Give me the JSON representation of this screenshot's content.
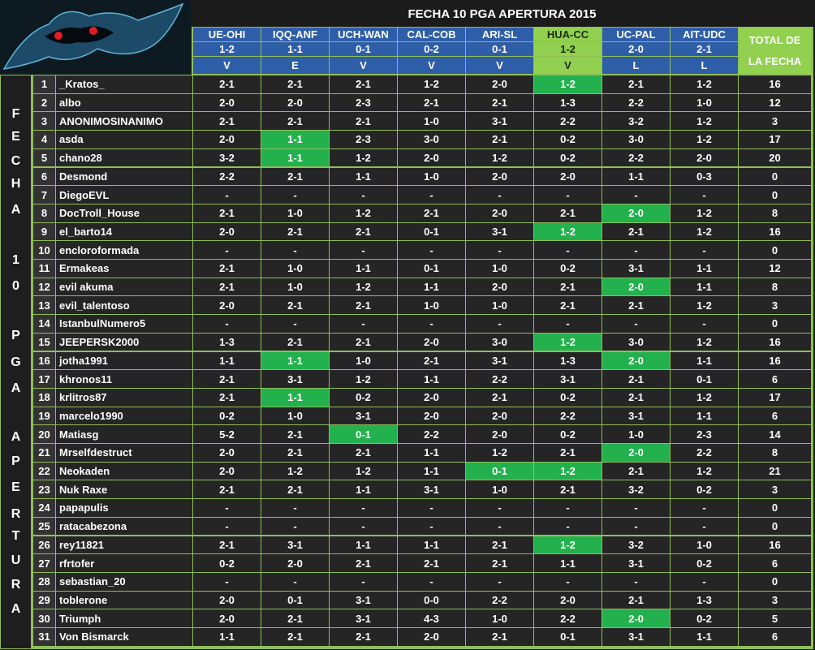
{
  "header": {
    "title": "FECHA 10 PGA APERTURA 2015",
    "total_label": "TOTAL DE LA FECHA",
    "matches": [
      {
        "name": "UE-OHI",
        "result": "1-2",
        "outcome": "V"
      },
      {
        "name": "IQQ-ANF",
        "result": "1-1",
        "outcome": "E"
      },
      {
        "name": "UCH-WAN",
        "result": "0-1",
        "outcome": "V"
      },
      {
        "name": "CAL-COB",
        "result": "0-2",
        "outcome": "V"
      },
      {
        "name": "ARI-SL",
        "result": "0-1",
        "outcome": "V"
      },
      {
        "name": "HUA-CC",
        "result": "1-2",
        "outcome": "V"
      },
      {
        "name": "UC-PAL",
        "result": "2-0",
        "outcome": "L"
      },
      {
        "name": "AIT-UDC",
        "result": "2-1",
        "outcome": "L"
      }
    ]
  },
  "side_letters": [
    "F",
    "E",
    "C",
    "H",
    "A",
    "1",
    "0",
    "P",
    "G",
    "A",
    "A",
    "P",
    "E",
    "R",
    "T",
    "U",
    "R",
    "A"
  ],
  "table": {
    "rows": [
      [
        1,
        "_Kratos_",
        "2-1",
        "2-1",
        "2-1",
        "1-2",
        "2-0",
        "1-2",
        "2-1",
        "1-2",
        16
      ],
      [
        2,
        "albo",
        "2-0",
        "2-0",
        "2-3",
        "2-1",
        "2-1",
        "1-3",
        "2-2",
        "1-0",
        12
      ],
      [
        3,
        "ANONIMOSINANIMO",
        "2-1",
        "2-1",
        "2-1",
        "1-0",
        "3-1",
        "2-2",
        "3-2",
        "1-2",
        3
      ],
      [
        4,
        "asda",
        "2-0",
        "1-1",
        "2-3",
        "3-0",
        "2-1",
        "0-2",
        "3-0",
        "1-2",
        17
      ],
      [
        5,
        "chano28",
        "3-2",
        "1-1",
        "1-2",
        "2-0",
        "1-2",
        "0-2",
        "2-2",
        "2-0",
        20
      ],
      [
        6,
        "Desmond",
        "2-2",
        "2-1",
        "1-1",
        "1-0",
        "2-0",
        "2-0",
        "1-1",
        "0-3",
        0
      ],
      [
        7,
        "DiegoEVL",
        "-",
        "-",
        "-",
        "-",
        "-",
        "-",
        "-",
        "-",
        0
      ],
      [
        8,
        "DocTroll_House",
        "2-1",
        "1-0",
        "1-2",
        "2-1",
        "2-0",
        "2-1",
        "2-0",
        "1-2",
        8
      ],
      [
        9,
        "el_barto14",
        "2-0",
        "2-1",
        "2-1",
        "0-1",
        "3-1",
        "1-2",
        "2-1",
        "1-2",
        16
      ],
      [
        10,
        "encloroformada",
        "-",
        "-",
        "-",
        "-",
        "-",
        "-",
        "-",
        "-",
        0
      ],
      [
        11,
        "Ermakeas",
        "2-1",
        "1-0",
        "1-1",
        "0-1",
        "1-0",
        "0-2",
        "3-1",
        "1-1",
        12
      ],
      [
        12,
        "evil akuma",
        "2-1",
        "1-0",
        "1-2",
        "1-1",
        "2-0",
        "2-1",
        "2-0",
        "1-1",
        8
      ],
      [
        13,
        "evil_talentoso",
        "2-0",
        "2-1",
        "2-1",
        "1-0",
        "1-0",
        "2-1",
        "2-1",
        "1-2",
        3
      ],
      [
        14,
        "IstanbulNumero5",
        "-",
        "-",
        "-",
        "-",
        "-",
        "-",
        "-",
        "-",
        0
      ],
      [
        15,
        "JEEPERSK2000",
        "1-3",
        "2-1",
        "2-1",
        "2-0",
        "3-0",
        "1-2",
        "3-0",
        "1-2",
        16
      ],
      [
        16,
        "jotha1991",
        "1-1",
        "1-1",
        "1-0",
        "2-1",
        "3-1",
        "1-3",
        "2-0",
        "1-1",
        16
      ],
      [
        17,
        "khronos11",
        "2-1",
        "3-1",
        "1-2",
        "1-1",
        "2-2",
        "3-1",
        "2-1",
        "0-1",
        6
      ],
      [
        18,
        "krlitros87",
        "2-1",
        "1-1",
        "0-2",
        "2-0",
        "2-1",
        "0-2",
        "2-1",
        "1-2",
        17
      ],
      [
        19,
        "marcelo1990",
        "0-2",
        "1-0",
        "3-1",
        "2-0",
        "2-0",
        "2-2",
        "3-1",
        "1-1",
        6
      ],
      [
        20,
        "Matiasg",
        "5-2",
        "2-1",
        "0-1",
        "2-2",
        "2-0",
        "0-2",
        "1-0",
        "2-3",
        14
      ],
      [
        21,
        "Mrselfdestruct",
        "2-0",
        "2-1",
        "2-1",
        "1-1",
        "1-2",
        "2-1",
        "2-0",
        "2-2",
        8
      ],
      [
        22,
        "Neokaden",
        "2-0",
        "1-2",
        "1-2",
        "1-1",
        "0-1",
        "1-2",
        "2-1",
        "1-2",
        21
      ],
      [
        23,
        "Nuk Raxe",
        "2-1",
        "2-1",
        "1-1",
        "3-1",
        "1-0",
        "2-1",
        "3-2",
        "0-2",
        3
      ],
      [
        24,
        "papapulis",
        "-",
        "-",
        "-",
        "-",
        "-",
        "-",
        "-",
        "-",
        0
      ],
      [
        25,
        "ratacabezona",
        "-",
        "-",
        "-",
        "-",
        "-",
        "-",
        "-",
        "-",
        0
      ],
      [
        26,
        "rey11821",
        "2-1",
        "3-1",
        "1-1",
        "1-1",
        "2-1",
        "1-2",
        "3-2",
        "1-0",
        16
      ],
      [
        27,
        "rfrtofer",
        "0-2",
        "2-0",
        "2-1",
        "2-1",
        "2-1",
        "1-1",
        "3-1",
        "0-2",
        6
      ],
      [
        28,
        "sebastian_20",
        "-",
        "-",
        "-",
        "-",
        "-",
        "-",
        "-",
        "-",
        0
      ],
      [
        29,
        "toblerone",
        "2-0",
        "0-1",
        "3-1",
        "0-0",
        "2-2",
        "2-0",
        "2-1",
        "1-3",
        3
      ],
      [
        30,
        "Triumph",
        "2-0",
        "2-1",
        "3-1",
        "4-3",
        "1-0",
        "2-2",
        "2-0",
        "0-2",
        5
      ],
      [
        31,
        "Von Bismarck",
        "1-1",
        "2-1",
        "2-1",
        "2-0",
        "2-1",
        "0-1",
        "3-1",
        "1-1",
        6
      ]
    ]
  }
}
